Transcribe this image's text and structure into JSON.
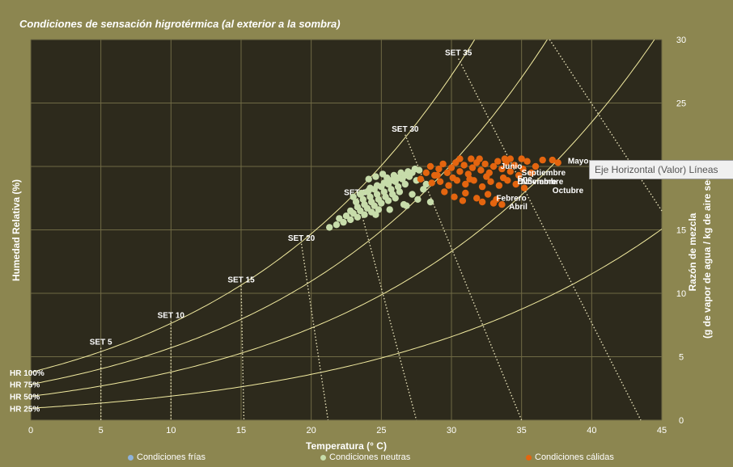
{
  "title": "Condiciones de sensación higrotérmica (al exterior a la sombra)",
  "tooltip": "Eje Horizontal (Valor) Líneas",
  "colors": {
    "plot_bg": "#2d2a1c",
    "frame_bg": "#8c8650",
    "grid": "#6f6a45",
    "hr_curve": "#f2eba0",
    "set_line": "#e6e0b8",
    "frias": "#8fb3dc",
    "neutras": "#c7dcaa",
    "calidas": "#e4650f"
  },
  "chart_data": {
    "type": "scatter",
    "xlabel": "Temperatura (° C)",
    "ylabel_left": "Humedad Relativa (%)",
    "ylabel_right": [
      "Razón de mezcla",
      "(g de vapor de  agua / kg de  aire seco)"
    ],
    "xlim": [
      0,
      45
    ],
    "ylim": [
      0,
      30
    ],
    "x_ticks": [
      0,
      5,
      10,
      15,
      20,
      25,
      30,
      35,
      40,
      45
    ],
    "y_ticks": [
      0,
      5,
      10,
      15,
      20,
      25,
      30
    ],
    "grid": true,
    "legend_position": "bottom",
    "legend": [
      "Condiciones frías",
      "Condiciones neutras",
      "Condiciones cálidas"
    ],
    "hr_curves": [
      {
        "label": "HR 100%",
        "rh": 1.0
      },
      {
        "label": "HR 75%",
        "rh": 0.75
      },
      {
        "label": "HR 50%",
        "rh": 0.5
      },
      {
        "label": "HR 25%",
        "rh": 0.25
      }
    ],
    "set_lines": [
      {
        "label": "SET 5",
        "top": [
          5,
          5.7
        ],
        "bottom": [
          5,
          0
        ]
      },
      {
        "label": "SET 10",
        "top": [
          10,
          7.8
        ],
        "bottom": [
          10,
          0
        ]
      },
      {
        "label": "SET 15",
        "top": [
          15,
          10.6
        ],
        "bottom": [
          15.2,
          0
        ]
      },
      {
        "label": "SET 20",
        "top": [
          19.3,
          13.9
        ],
        "bottom": [
          21.2,
          0
        ]
      },
      {
        "label": "SET 25",
        "top": [
          23.3,
          17.5
        ],
        "bottom": [
          27.5,
          0
        ]
      },
      {
        "label": "SET 30",
        "top": [
          26.7,
          22.5
        ],
        "bottom": [
          35,
          0
        ]
      },
      {
        "label": "SET 35",
        "top": [
          30.5,
          28.5
        ],
        "bottom": [
          43.5,
          0
        ]
      },
      {
        "label": "",
        "top": [
          37,
          30
        ],
        "bottom": [
          45,
          16.5
        ]
      }
    ],
    "series": [
      {
        "name": "Condiciones frías",
        "points": []
      },
      {
        "name": "Condiciones neutras",
        "points": [
          [
            21.3,
            15.2
          ],
          [
            21.8,
            15.4
          ],
          [
            22.3,
            15.6
          ],
          [
            22.8,
            15.8
          ],
          [
            23.3,
            16.0
          ],
          [
            23.8,
            16.2
          ],
          [
            24.3,
            16.4
          ],
          [
            24.8,
            16.6
          ],
          [
            22.0,
            15.9
          ],
          [
            22.5,
            16.1
          ],
          [
            23.0,
            16.3
          ],
          [
            23.5,
            16.5
          ],
          [
            24.0,
            16.7
          ],
          [
            24.5,
            16.9
          ],
          [
            25.0,
            17.1
          ],
          [
            25.5,
            17.3
          ],
          [
            22.8,
            16.5
          ],
          [
            23.3,
            16.8
          ],
          [
            23.8,
            17.0
          ],
          [
            24.3,
            17.2
          ],
          [
            24.8,
            17.4
          ],
          [
            25.3,
            17.6
          ],
          [
            25.8,
            17.8
          ],
          [
            26.3,
            18.0
          ],
          [
            23.2,
            17.2
          ],
          [
            23.7,
            17.4
          ],
          [
            24.2,
            17.6
          ],
          [
            24.7,
            17.8
          ],
          [
            25.2,
            18.0
          ],
          [
            25.7,
            18.2
          ],
          [
            26.2,
            18.4
          ],
          [
            26.7,
            18.6
          ],
          [
            23.5,
            17.8
          ],
          [
            24.0,
            18.0
          ],
          [
            24.5,
            18.2
          ],
          [
            25.0,
            18.4
          ],
          [
            25.5,
            18.6
          ],
          [
            26.0,
            18.8
          ],
          [
            26.5,
            19.0
          ],
          [
            27.0,
            19.2
          ],
          [
            24.2,
            18.3
          ],
          [
            24.7,
            18.5
          ],
          [
            25.2,
            18.7
          ],
          [
            25.7,
            18.9
          ],
          [
            26.2,
            19.1
          ],
          [
            26.7,
            19.3
          ],
          [
            27.2,
            19.5
          ],
          [
            27.7,
            19.7
          ],
          [
            23.0,
            17.6
          ],
          [
            23.6,
            17.9
          ],
          [
            24.1,
            18.1
          ],
          [
            25.4,
            19.1
          ],
          [
            25.9,
            19.3
          ],
          [
            26.4,
            19.5
          ],
          [
            26.9,
            19.6
          ],
          [
            27.4,
            19.8
          ],
          [
            24.6,
            16.2
          ],
          [
            25.6,
            16.6
          ],
          [
            26.6,
            17.0
          ],
          [
            27.6,
            17.4
          ],
          [
            28.5,
            17.2
          ],
          [
            27.2,
            17.8
          ],
          [
            26.8,
            16.9
          ],
          [
            28.0,
            18.2
          ],
          [
            24.1,
            19.0
          ],
          [
            24.6,
            19.2
          ],
          [
            25.1,
            19.4
          ],
          [
            26.0,
            17.5
          ],
          [
            27.5,
            18.9
          ],
          [
            28.2,
            18.6
          ]
        ]
      },
      {
        "name": "Condiciones cálidas",
        "points": [
          [
            27.8,
            19.0
          ],
          [
            28.2,
            19.5
          ],
          [
            28.5,
            20.0
          ],
          [
            28.8,
            19.3
          ],
          [
            29.1,
            19.8
          ],
          [
            29.4,
            20.2
          ],
          [
            29.7,
            19.5
          ],
          [
            30.0,
            19.9
          ],
          [
            30.3,
            20.3
          ],
          [
            30.6,
            19.6
          ],
          [
            30.9,
            20.1
          ],
          [
            31.2,
            19.4
          ],
          [
            31.5,
            19.9
          ],
          [
            31.8,
            20.3
          ],
          [
            32.1,
            19.7
          ],
          [
            32.4,
            20.2
          ],
          [
            32.7,
            19.5
          ],
          [
            33.0,
            20.0
          ],
          [
            33.3,
            20.4
          ],
          [
            33.6,
            19.8
          ],
          [
            33.9,
            20.3
          ],
          [
            34.2,
            19.6
          ],
          [
            34.5,
            20.1
          ],
          [
            34.8,
            19.3
          ],
          [
            35.1,
            19.8
          ],
          [
            35.4,
            20.4
          ],
          [
            35.7,
            19.5
          ],
          [
            36.0,
            20.0
          ],
          [
            36.5,
            20.5
          ],
          [
            37.2,
            20.5
          ],
          [
            37.6,
            20.3
          ],
          [
            34.2,
            20.6
          ],
          [
            29.2,
            18.8
          ],
          [
            29.8,
            18.5
          ],
          [
            30.4,
            18.9
          ],
          [
            31.0,
            18.6
          ],
          [
            31.6,
            18.9
          ],
          [
            32.2,
            18.4
          ],
          [
            32.8,
            18.8
          ],
          [
            33.4,
            18.5
          ],
          [
            34.0,
            18.9
          ],
          [
            34.6,
            18.6
          ],
          [
            35.2,
            18.3
          ],
          [
            29.5,
            18.0
          ],
          [
            30.2,
            17.6
          ],
          [
            31.0,
            17.9
          ],
          [
            31.8,
            17.5
          ],
          [
            32.6,
            17.8
          ],
          [
            33.2,
            17.4
          ],
          [
            33.6,
            17.0
          ],
          [
            33.0,
            17.1
          ],
          [
            32.2,
            17.2
          ],
          [
            30.8,
            17.3
          ],
          [
            29.0,
            19.3
          ],
          [
            30.6,
            20.6
          ],
          [
            31.4,
            20.6
          ],
          [
            32.0,
            20.6
          ],
          [
            33.8,
            20.6
          ],
          [
            35.0,
            20.6
          ],
          [
            30.1,
            19.1
          ],
          [
            31.3,
            19.0
          ],
          [
            32.5,
            19.2
          ],
          [
            33.7,
            19.1
          ],
          [
            28.6,
            18.7
          ]
        ]
      }
    ],
    "month_labels": [
      {
        "text": "Mayo",
        "x": 38.3,
        "y": 20.4
      },
      {
        "text": "Junio",
        "x": 33.5,
        "y": 20.0
      },
      {
        "text": "Septiembre",
        "x": 35.0,
        "y": 19.5
      },
      {
        "text": "Ene",
        "x": 34.7,
        "y": 19.0
      },
      {
        "text": "Diciembre",
        "x": 34.7,
        "y": 18.8
      },
      {
        "text": "Noviembre",
        "x": 35.0,
        "y": 18.8
      },
      {
        "text": "Octubre",
        "x": 37.2,
        "y": 18.1
      },
      {
        "text": "Febrero",
        "x": 33.2,
        "y": 17.5
      },
      {
        "text": "Abril",
        "x": 34.1,
        "y": 16.8
      }
    ]
  }
}
